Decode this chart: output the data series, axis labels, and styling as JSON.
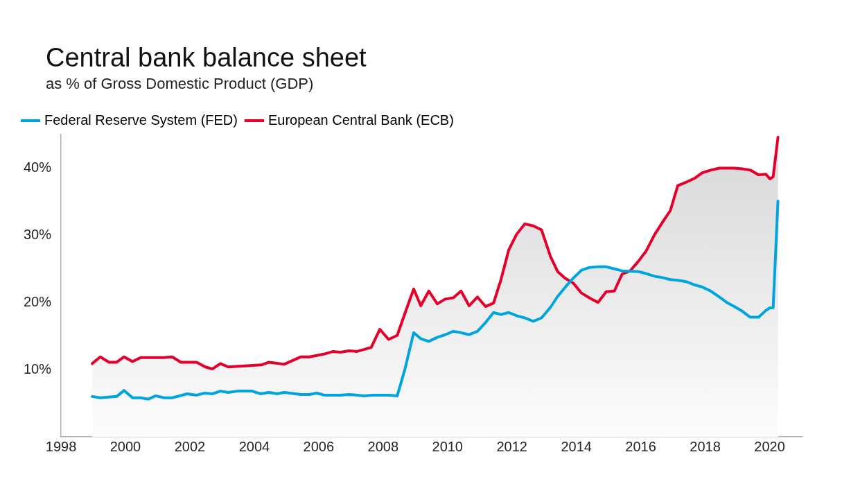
{
  "chart_data": {
    "type": "area",
    "title": "Central bank balance sheet",
    "subtitle": "as % of Gross Domestic Product (GDP)",
    "xlim": [
      1998,
      2021
    ],
    "xticks": [
      1998,
      2000,
      2002,
      2004,
      2006,
      2008,
      2010,
      2012,
      2014,
      2016,
      2018,
      2020
    ],
    "ylim": [
      0,
      45
    ],
    "yticks": [
      {
        "value": 10,
        "label": "10%"
      },
      {
        "value": 20,
        "label": "20%"
      },
      {
        "value": 30,
        "label": "30%"
      },
      {
        "value": 40,
        "label": "40%"
      }
    ],
    "grid": false,
    "legend": "top left",
    "line_style": "solid",
    "marker": "none",
    "series": [
      {
        "name": "Federal Reserve System (FED)",
        "color": "#00a5e0",
        "x": [
          1998.97,
          1999.22,
          1999.73,
          1999.96,
          2000.22,
          2000.47,
          2000.71,
          2000.94,
          2001.2,
          2001.45,
          2001.92,
          2002.21,
          2002.46,
          2002.7,
          2002.95,
          2003.19,
          2003.48,
          2003.93,
          2004.2,
          2004.46,
          2004.71,
          2004.93,
          2005.45,
          2005.71,
          2005.94,
          2006.18,
          2006.67,
          2006.94,
          2007.41,
          2007.68,
          2008.17,
          2008.44,
          2008.68,
          2008.95,
          2009.17,
          2009.42,
          2009.68,
          2009.93,
          2010.18,
          2010.42,
          2010.67,
          2010.93,
          2011.18,
          2011.43,
          2011.66,
          2011.9,
          2012.16,
          2012.4,
          2012.66,
          2012.92,
          2013.2,
          2013.42,
          2013.66,
          2013.9,
          2014.16,
          2014.4,
          2014.67,
          2014.93,
          2015.18,
          2015.42,
          2015.92,
          2016.16,
          2016.43,
          2016.67,
          2016.92,
          2017.15,
          2017.41,
          2017.68,
          2017.91,
          2018.17,
          2018.44,
          2018.67,
          2018.9,
          2019.15,
          2019.4,
          2019.66,
          2019.88,
          2020.01,
          2020.11,
          2020.26
        ],
        "values": [
          6.0,
          5.8,
          6.0,
          6.9,
          5.8,
          5.8,
          5.6,
          6.1,
          5.8,
          5.8,
          6.4,
          6.2,
          6.5,
          6.4,
          6.8,
          6.6,
          6.8,
          6.8,
          6.4,
          6.6,
          6.4,
          6.6,
          6.3,
          6.3,
          6.5,
          6.2,
          6.2,
          6.3,
          6.1,
          6.2,
          6.2,
          6.1,
          10.1,
          15.5,
          14.6,
          14.2,
          14.8,
          15.2,
          15.7,
          15.5,
          15.2,
          15.7,
          17.0,
          18.5,
          18.2,
          18.5,
          18.0,
          17.7,
          17.2,
          17.7,
          19.3,
          20.9,
          22.3,
          23.6,
          24.8,
          25.2,
          25.3,
          25.3,
          25.0,
          24.7,
          24.6,
          24.3,
          23.9,
          23.7,
          23.4,
          23.3,
          23.1,
          22.6,
          22.3,
          21.7,
          20.8,
          20.0,
          19.4,
          18.7,
          17.8,
          17.8,
          18.8,
          19.2,
          19.2,
          35.1
        ]
      },
      {
        "name": "European Central Bank (ECB)",
        "color": "#e4002b",
        "x": [
          1998.97,
          1999.22,
          1999.49,
          1999.73,
          1999.96,
          2000.22,
          2000.47,
          2001.18,
          2001.45,
          2001.72,
          2002.21,
          2002.48,
          2002.7,
          2002.95,
          2003.19,
          2004.22,
          2004.46,
          2004.93,
          2005.45,
          2005.71,
          2006.16,
          2006.45,
          2006.67,
          2006.94,
          2007.19,
          2007.63,
          2007.9,
          2008.17,
          2008.44,
          2008.68,
          2008.95,
          2009.17,
          2009.42,
          2009.68,
          2009.93,
          2010.18,
          2010.42,
          2010.67,
          2010.93,
          2011.18,
          2011.43,
          2011.66,
          2011.9,
          2012.14,
          2012.4,
          2012.66,
          2012.92,
          2013.2,
          2013.42,
          2013.65,
          2013.9,
          2014.16,
          2014.4,
          2014.67,
          2014.93,
          2015.18,
          2015.42,
          2015.67,
          2015.92,
          2016.16,
          2016.43,
          2016.67,
          2016.92,
          2017.15,
          2017.41,
          2017.68,
          2017.91,
          2018.17,
          2018.44,
          2018.9,
          2019.15,
          2019.4,
          2019.66,
          2019.88,
          2020.01,
          2020.11,
          2020.26
        ],
        "values": [
          10.9,
          11.9,
          11.1,
          11.1,
          11.9,
          11.2,
          11.8,
          11.8,
          11.9,
          11.1,
          11.1,
          10.4,
          10.1,
          10.9,
          10.4,
          10.7,
          11.1,
          10.8,
          11.9,
          11.9,
          12.3,
          12.7,
          12.6,
          12.8,
          12.7,
          13.3,
          16.0,
          14.5,
          15.1,
          18.4,
          22.0,
          19.5,
          21.7,
          19.8,
          20.5,
          20.7,
          21.7,
          19.5,
          20.8,
          19.4,
          19.9,
          23.4,
          27.8,
          30.1,
          31.7,
          31.4,
          30.8,
          26.8,
          24.6,
          23.6,
          22.9,
          21.4,
          20.7,
          20.0,
          21.6,
          21.7,
          24.2,
          24.7,
          26.1,
          27.6,
          30.1,
          31.9,
          33.7,
          37.4,
          37.9,
          38.5,
          39.3,
          39.7,
          40.0,
          40.0,
          39.9,
          39.7,
          39.0,
          39.1,
          38.4,
          38.7,
          44.6
        ]
      }
    ]
  }
}
